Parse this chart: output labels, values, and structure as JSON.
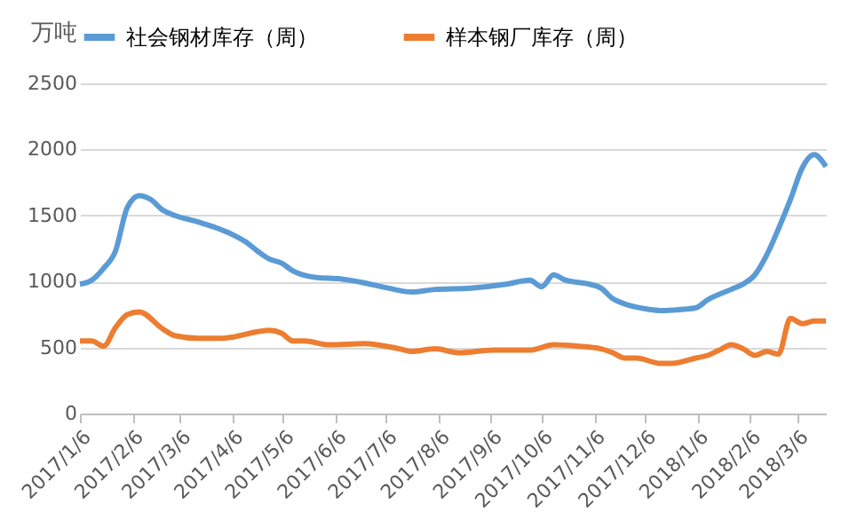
{
  "chart_data": {
    "type": "line",
    "ylabel": "万吨",
    "legend": "top",
    "grid": "y",
    "marker": "none",
    "line_style": "solid",
    "ylim": [
      0,
      2500
    ],
    "yticks": [
      0,
      500,
      1000,
      1500,
      2000,
      2500
    ],
    "xlim": [
      "2017-01-06",
      "2018-03-23"
    ],
    "xticks": [
      {
        "value": "2017-01-06",
        "label": "2017/1/6"
      },
      {
        "value": "2017-02-06",
        "label": "2017/2/6"
      },
      {
        "value": "2017-03-06",
        "label": "2017/3/6"
      },
      {
        "value": "2017-04-06",
        "label": "2017/4/6"
      },
      {
        "value": "2017-05-06",
        "label": "2017/5/6"
      },
      {
        "value": "2017-06-06",
        "label": "2017/6/6"
      },
      {
        "value": "2017-07-06",
        "label": "2017/7/6"
      },
      {
        "value": "2017-08-06",
        "label": "2017/8/6"
      },
      {
        "value": "2017-09-06",
        "label": "2017/9/6"
      },
      {
        "value": "2017-10-06",
        "label": "2017/10/6"
      },
      {
        "value": "2017-11-06",
        "label": "2017/11/6"
      },
      {
        "value": "2017-12-06",
        "label": "2017/12/6"
      },
      {
        "value": "2018-01-06",
        "label": "2018/1/6"
      },
      {
        "value": "2018-02-06",
        "label": "2018/2/6"
      },
      {
        "value": "2018-03-06",
        "label": "2018/3/6"
      }
    ],
    "series": [
      {
        "name": "社会钢材库存（周）",
        "color": "#5b9bd5",
        "x": [
          "2017-01-06",
          "2017-01-13",
          "2017-01-20",
          "2017-01-27",
          "2017-02-03",
          "2017-02-10",
          "2017-02-17",
          "2017-02-24",
          "2017-03-03",
          "2017-03-17",
          "2017-03-31",
          "2017-04-07",
          "2017-04-14",
          "2017-04-21",
          "2017-04-28",
          "2017-05-05",
          "2017-05-12",
          "2017-05-26",
          "2017-06-09",
          "2017-06-23",
          "2017-07-07",
          "2017-07-21",
          "2017-08-04",
          "2017-08-25",
          "2017-09-15",
          "2017-09-29",
          "2017-10-06",
          "2017-10-13",
          "2017-10-20",
          "2017-11-03",
          "2017-11-10",
          "2017-11-17",
          "2017-11-24",
          "2017-12-08",
          "2017-12-15",
          "2017-12-29",
          "2018-01-05",
          "2018-01-12",
          "2018-01-26",
          "2018-02-02",
          "2018-02-09",
          "2018-02-16",
          "2018-02-23",
          "2018-03-02",
          "2018-03-09",
          "2018-03-16",
          "2018-03-23"
        ],
        "values": [
          980,
          1010,
          1100,
          1230,
          1560,
          1650,
          1620,
          1540,
          1500,
          1450,
          1390,
          1350,
          1300,
          1230,
          1170,
          1140,
          1080,
          1030,
          1020,
          990,
          950,
          920,
          940,
          950,
          980,
          1010,
          960,
          1050,
          1010,
          980,
          950,
          870,
          830,
          790,
          780,
          790,
          800,
          860,
          940,
          980,
          1050,
          1200,
          1400,
          1620,
          1860,
          1960,
          1870
        ]
      },
      {
        "name": "样本钢厂库存（周）",
        "color": "#ed7d31",
        "x": [
          "2017-01-06",
          "2017-01-13",
          "2017-01-20",
          "2017-01-27",
          "2017-02-03",
          "2017-02-10",
          "2017-02-24",
          "2017-03-03",
          "2017-03-17",
          "2017-03-31",
          "2017-04-07",
          "2017-04-21",
          "2017-04-28",
          "2017-05-05",
          "2017-05-12",
          "2017-05-19",
          "2017-06-02",
          "2017-06-23",
          "2017-07-14",
          "2017-07-21",
          "2017-08-04",
          "2017-08-18",
          "2017-09-08",
          "2017-09-29",
          "2017-10-13",
          "2017-10-27",
          "2017-11-10",
          "2017-11-17",
          "2017-11-24",
          "2017-12-01",
          "2017-12-15",
          "2017-12-22",
          "2018-01-05",
          "2018-01-12",
          "2018-01-19",
          "2018-01-26",
          "2018-02-02",
          "2018-02-09",
          "2018-02-16",
          "2018-02-23",
          "2018-03-02",
          "2018-03-09",
          "2018-03-16",
          "2018-03-23"
        ],
        "values": [
          550,
          550,
          510,
          650,
          750,
          770,
          640,
          590,
          570,
          570,
          580,
          620,
          630,
          610,
          550,
          550,
          520,
          530,
          490,
          470,
          490,
          460,
          480,
          480,
          520,
          510,
          490,
          460,
          420,
          420,
          380,
          380,
          420,
          440,
          480,
          520,
          490,
          440,
          470,
          450,
          720,
          680,
          700,
          700
        ]
      }
    ]
  }
}
